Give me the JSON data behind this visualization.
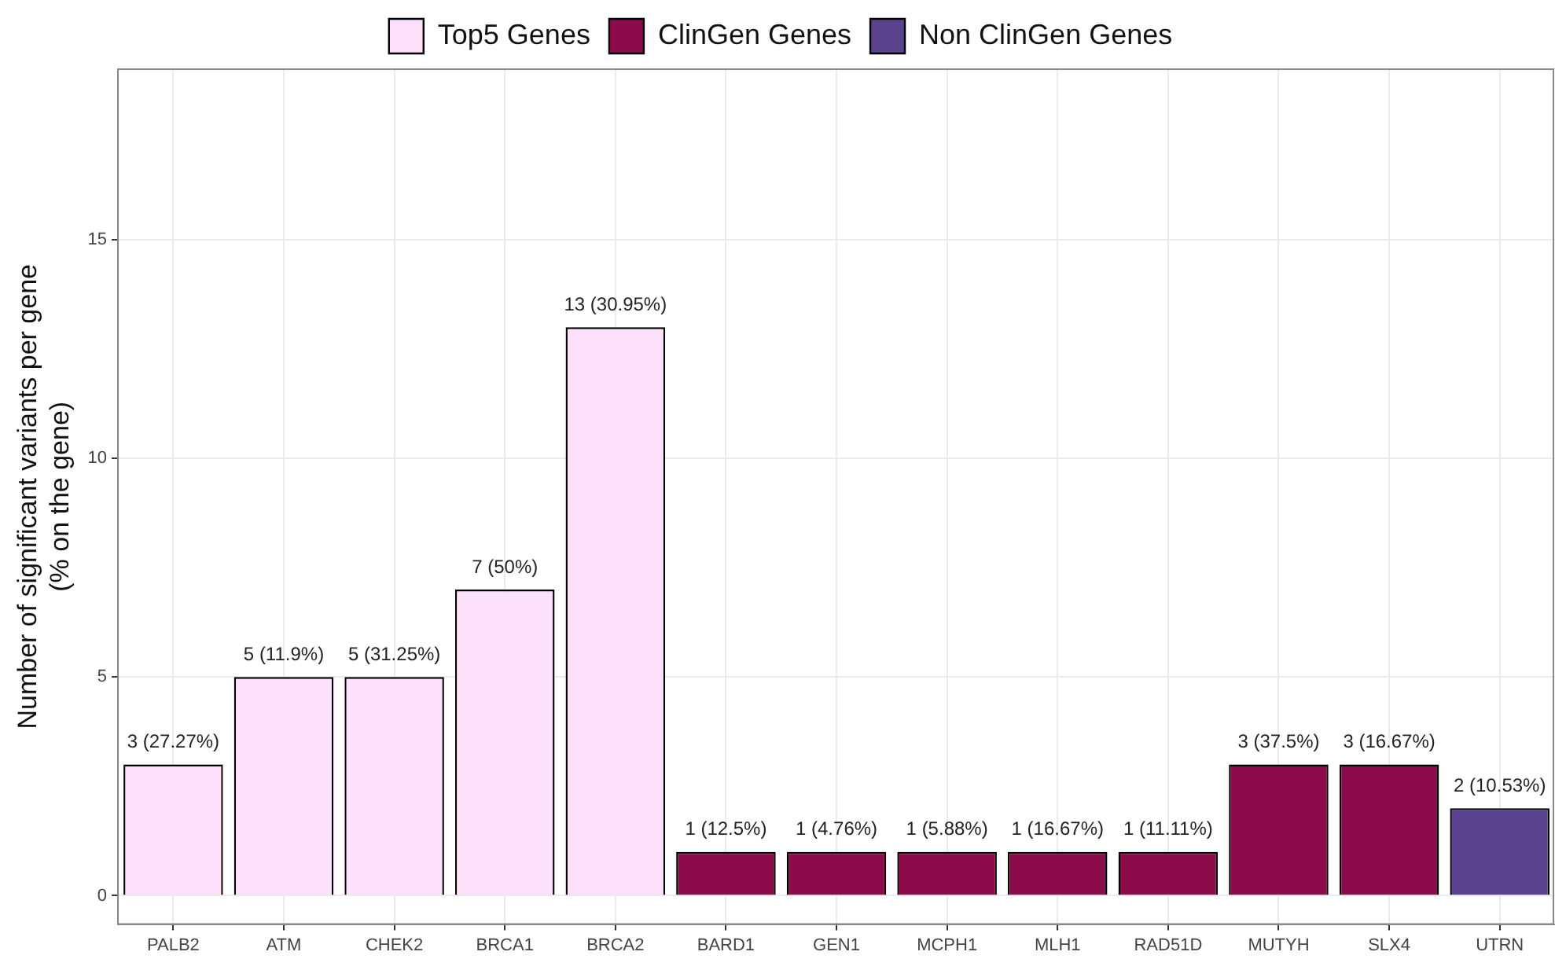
{
  "chart_data": {
    "type": "bar",
    "ylabel": "Number of significant variants per gene\n(% on the gene)",
    "categories": [
      "PALB2",
      "ATM",
      "CHEK2",
      "BRCA1",
      "BRCA2",
      "BARD1",
      "GEN1",
      "MCPH1",
      "MLH1",
      "RAD51D",
      "MUTYH",
      "SLX4",
      "UTRN"
    ],
    "series": [
      {
        "name": "Top5 Genes",
        "color": "#fde0fa",
        "values": [
          3,
          5,
          5,
          7,
          13,
          null,
          null,
          null,
          null,
          null,
          null,
          null,
          null
        ],
        "value_labels": [
          "3 (27.27%)",
          "5 (11.9%)",
          "5 (31.25%)",
          "7 (50%)",
          "13 (30.95%)",
          null,
          null,
          null,
          null,
          null,
          null,
          null,
          null
        ]
      },
      {
        "name": "ClinGen Genes",
        "color": "#8b0b4b",
        "values": [
          null,
          null,
          null,
          null,
          null,
          1,
          1,
          1,
          1,
          1,
          3,
          3,
          null
        ],
        "value_labels": [
          null,
          null,
          null,
          null,
          null,
          "1 (12.5%)",
          "1 (4.76%)",
          "1 (5.88%)",
          "1 (16.67%)",
          "1 (11.11%)",
          "3 (37.5%)",
          "3 (16.67%)",
          null
        ]
      },
      {
        "name": "Non ClinGen Genes",
        "color": "#5a428e",
        "values": [
          null,
          null,
          null,
          null,
          null,
          null,
          null,
          null,
          null,
          null,
          null,
          null,
          2
        ],
        "value_labels": [
          null,
          null,
          null,
          null,
          null,
          null,
          null,
          null,
          null,
          null,
          null,
          null,
          "2 (10.53%)"
        ]
      }
    ],
    "ylim": [
      -0.65,
      18.9
    ],
    "yticks": [
      0,
      5,
      10,
      15
    ],
    "grid": true,
    "legend": "top"
  }
}
